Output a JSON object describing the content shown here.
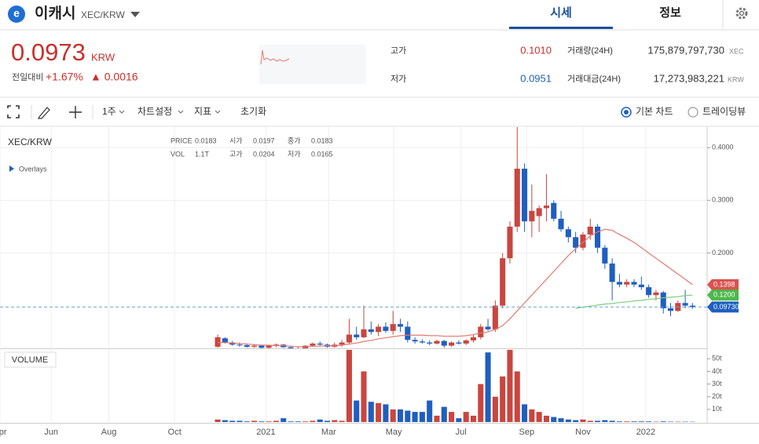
{
  "header": {
    "name": "이캐시",
    "pair": "XEC/KRW",
    "tabs": [
      "시세",
      "정보"
    ]
  },
  "price": {
    "current": "0.0973",
    "unit": "KRW",
    "change_label": "전일대비",
    "change_pct": "+1.67%",
    "change_abs": "▲ 0.0016"
  },
  "stats": {
    "high_label": "고가",
    "high": "0.1010",
    "low_label": "저가",
    "low": "0.0951",
    "volume_label": "거래량(24H)",
    "volume": "175,879,797,730",
    "volume_unit": "XEC",
    "turnover_label": "거래대금(24H)",
    "turnover": "17,273,983,221",
    "turnover_unit": "KRW"
  },
  "toolbar": {
    "interval": "1주",
    "settings": "차트설정",
    "indicators": "지표",
    "reset": "초기화",
    "basic_chart": "기본 차트",
    "tradingview": "트레이딩뷰"
  },
  "chart_data": {
    "type": "candlestick",
    "title": "XEC/KRW",
    "overlays": "Overlays",
    "volume_title": "VOLUME",
    "legend": {
      "price_label": "PRICE",
      "price": "0.0183",
      "open_label": "시가",
      "open": "0.0197",
      "close_label": "종가",
      "close": "0.0183",
      "vol_label": "VOL",
      "vol": "1.1T",
      "high_label": "고가",
      "high": "0.0204",
      "low_label": "저가",
      "low": "0.0165"
    },
    "up_color": "#c9463f",
    "down_color": "#1f5fc0",
    "candles": {
      "open": [
        0.022,
        0.038,
        0.03,
        0.026,
        0.025,
        0.022,
        0.024,
        0.02,
        0.024,
        0.026,
        0.021,
        0.019,
        0.018,
        0.024,
        0.028,
        0.026,
        0.022,
        0.026,
        0.03,
        0.045,
        0.04,
        0.055,
        0.05,
        0.06,
        0.052,
        0.065,
        0.06,
        0.035,
        0.032,
        0.03,
        0.028,
        0.033,
        0.024,
        0.03,
        0.028,
        0.034,
        0.04,
        0.06,
        0.055,
        0.1,
        0.19,
        0.25,
        0.36,
        0.26,
        0.27,
        0.285,
        0.295,
        0.265,
        0.245,
        0.23,
        0.21,
        0.235,
        0.25,
        0.21,
        0.18,
        0.145,
        0.14,
        0.145,
        0.14,
        0.135,
        0.12,
        0.125,
        0.095,
        0.09,
        0.105,
        0.1
      ],
      "high": [
        0.045,
        0.04,
        0.033,
        0.03,
        0.028,
        0.027,
        0.026,
        0.025,
        0.028,
        0.027,
        0.024,
        0.022,
        0.025,
        0.03,
        0.032,
        0.028,
        0.03,
        0.035,
        0.075,
        0.06,
        0.1,
        0.07,
        0.065,
        0.068,
        0.09,
        0.075,
        0.07,
        0.04,
        0.036,
        0.034,
        0.035,
        0.035,
        0.032,
        0.034,
        0.036,
        0.045,
        0.065,
        0.075,
        0.11,
        0.2,
        0.26,
        0.44,
        0.37,
        0.33,
        0.29,
        0.35,
        0.3,
        0.28,
        0.25,
        0.24,
        0.24,
        0.265,
        0.255,
        0.215,
        0.19,
        0.16,
        0.15,
        0.15,
        0.155,
        0.14,
        0.13,
        0.128,
        0.105,
        0.11,
        0.13,
        0.105
      ],
      "low": [
        0.02,
        0.028,
        0.024,
        0.022,
        0.02,
        0.02,
        0.018,
        0.018,
        0.021,
        0.02,
        0.018,
        0.016,
        0.017,
        0.022,
        0.024,
        0.02,
        0.02,
        0.022,
        0.028,
        0.035,
        0.038,
        0.045,
        0.042,
        0.048,
        0.045,
        0.05,
        0.03,
        0.028,
        0.028,
        0.025,
        0.026,
        0.02,
        0.022,
        0.026,
        0.025,
        0.03,
        0.036,
        0.052,
        0.05,
        0.095,
        0.18,
        0.24,
        0.24,
        0.23,
        0.24,
        0.26,
        0.26,
        0.24,
        0.22,
        0.2,
        0.205,
        0.225,
        0.2,
        0.17,
        0.11,
        0.135,
        0.135,
        0.135,
        0.13,
        0.115,
        0.11,
        0.085,
        0.08,
        0.088,
        0.095,
        0.094
      ],
      "close": [
        0.04,
        0.03,
        0.026,
        0.025,
        0.022,
        0.024,
        0.02,
        0.024,
        0.026,
        0.021,
        0.019,
        0.018,
        0.024,
        0.028,
        0.026,
        0.022,
        0.026,
        0.03,
        0.045,
        0.04,
        0.055,
        0.05,
        0.06,
        0.052,
        0.065,
        0.06,
        0.035,
        0.032,
        0.03,
        0.028,
        0.033,
        0.024,
        0.03,
        0.028,
        0.034,
        0.04,
        0.06,
        0.055,
        0.1,
        0.19,
        0.25,
        0.36,
        0.26,
        0.28,
        0.285,
        0.29,
        0.265,
        0.245,
        0.23,
        0.21,
        0.235,
        0.25,
        0.21,
        0.18,
        0.145,
        0.14,
        0.145,
        0.14,
        0.135,
        0.12,
        0.125,
        0.095,
        0.09,
        0.105,
        0.1,
        0.0973
      ],
      "last_label": "0.09730"
    },
    "series": [
      {
        "color": "#e07a72",
        "last_label": "0.1398",
        "values": [
          0.03,
          0.03,
          0.029,
          0.028,
          0.027,
          0.026,
          0.025,
          0.025,
          0.024,
          0.024,
          0.023,
          0.022,
          0.022,
          0.023,
          0.023,
          0.024,
          0.024,
          0.025,
          0.027,
          0.029,
          0.032,
          0.034,
          0.037,
          0.039,
          0.041,
          0.043,
          0.044,
          0.044,
          0.044,
          0.043,
          0.043,
          0.042,
          0.042,
          0.042,
          0.043,
          0.045,
          0.048,
          0.05,
          0.055,
          0.062,
          0.075,
          0.09,
          0.105,
          0.12,
          0.135,
          0.15,
          0.165,
          0.18,
          0.195,
          0.208,
          0.22,
          0.232,
          0.24,
          0.245,
          0.243,
          0.235,
          0.228,
          0.22,
          0.21,
          0.2,
          0.19,
          0.18,
          0.17,
          0.16,
          0.15,
          0.1398
        ]
      },
      {
        "color": "#7ccf7a",
        "last_label": "0.1200",
        "values": [
          null,
          null,
          null,
          null,
          null,
          null,
          null,
          null,
          null,
          null,
          null,
          null,
          null,
          null,
          null,
          null,
          null,
          null,
          null,
          null,
          null,
          null,
          null,
          null,
          null,
          null,
          null,
          null,
          null,
          null,
          null,
          null,
          null,
          null,
          null,
          null,
          null,
          null,
          null,
          null,
          null,
          null,
          null,
          null,
          null,
          null,
          null,
          null,
          null,
          0.095,
          0.097,
          0.099,
          0.101,
          0.103,
          0.104,
          0.106,
          0.107,
          0.109,
          0.11,
          0.112,
          0.113,
          0.115,
          0.116,
          0.117,
          0.119,
          0.12
        ]
      }
    ],
    "ylim": [
      0.019,
      0.439
    ],
    "yticks": [
      {
        "value": 0.2,
        "label": "0.2000"
      },
      {
        "value": 0.3,
        "label": "0.3000"
      },
      {
        "value": 0.4,
        "label": "0.4000"
      }
    ],
    "xlim": [
      -29.8,
      67
    ],
    "xticks": [
      {
        "value": -29.8,
        "label": "Apr"
      },
      {
        "value": -22.8,
        "label": "Jun"
      },
      {
        "value": -14.9,
        "label": "Aug"
      },
      {
        "value": -5.9,
        "label": "Oct"
      },
      {
        "value": 6.6,
        "label": "2021"
      },
      {
        "value": 15.2,
        "label": "Mar"
      },
      {
        "value": 24.1,
        "label": "May"
      },
      {
        "value": 33.3,
        "label": "Jul"
      },
      {
        "value": 42.3,
        "label": "Sep"
      },
      {
        "value": 50,
        "label": "Nov"
      },
      {
        "value": 58.6,
        "label": "2022"
      }
    ],
    "volume": {
      "values": [
        2,
        1.5,
        1,
        1,
        0.5,
        1,
        0.5,
        0.5,
        1,
        3,
        0.5,
        0.5,
        0.5,
        1,
        2,
        1,
        1.5,
        1,
        57,
        17,
        40,
        16,
        15,
        14,
        10,
        10,
        9,
        8,
        8,
        17,
        5,
        12,
        8,
        3,
        8,
        5,
        30,
        55,
        20,
        36,
        57,
        40,
        14,
        10,
        8,
        5,
        4,
        3,
        2,
        1.5,
        2,
        1,
        1,
        1.5,
        1,
        0.5,
        0.5,
        0.5,
        0.5,
        0.5,
        0.3,
        0.5,
        0.3,
        0.3,
        0.3,
        0.2
      ],
      "ylim": [
        0,
        57
      ],
      "yticks": [
        {
          "value": 10,
          "label": "10t"
        },
        {
          "value": 20,
          "label": "20t"
        },
        {
          "value": 30,
          "label": "30t"
        },
        {
          "value": 40,
          "label": "40t"
        },
        {
          "value": 50,
          "label": "50t"
        }
      ]
    }
  }
}
